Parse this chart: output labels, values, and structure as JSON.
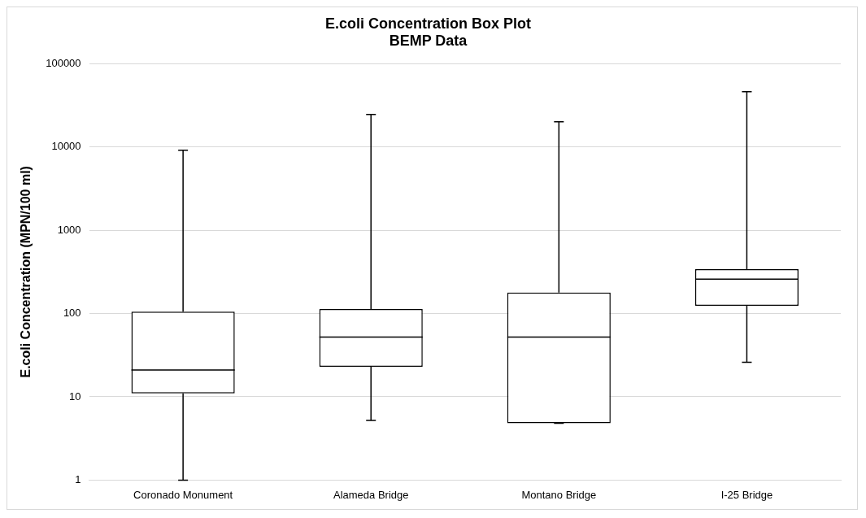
{
  "chart_data": {
    "type": "box",
    "title": "E.coli Concentration Box Plot",
    "subtitle": "BEMP Data",
    "ylabel": "E.coli Concentration (MPN/100 ml)",
    "categories": [
      "Coronado Monument",
      "Alameda Bridge",
      "Montano Bridge",
      "I-25 Bridge"
    ],
    "boxes": [
      {
        "low": 1,
        "q1": 11,
        "median": 21,
        "q3": 105,
        "high": 9100
      },
      {
        "low": 5.2,
        "q1": 23,
        "median": 52,
        "q3": 113,
        "high": 24500
      },
      {
        "low": 4.8,
        "q1": 4.8,
        "median": 52,
        "q3": 178,
        "high": 20000
      },
      {
        "low": 26,
        "q1": 124,
        "median": 258,
        "q3": 340,
        "high": 46000
      }
    ],
    "log": true,
    "ylim": [
      1,
      100000
    ],
    "yticks": [
      1,
      10,
      100,
      1000,
      10000,
      100000
    ],
    "grid": "y",
    "legend": false,
    "color": "#000000"
  }
}
